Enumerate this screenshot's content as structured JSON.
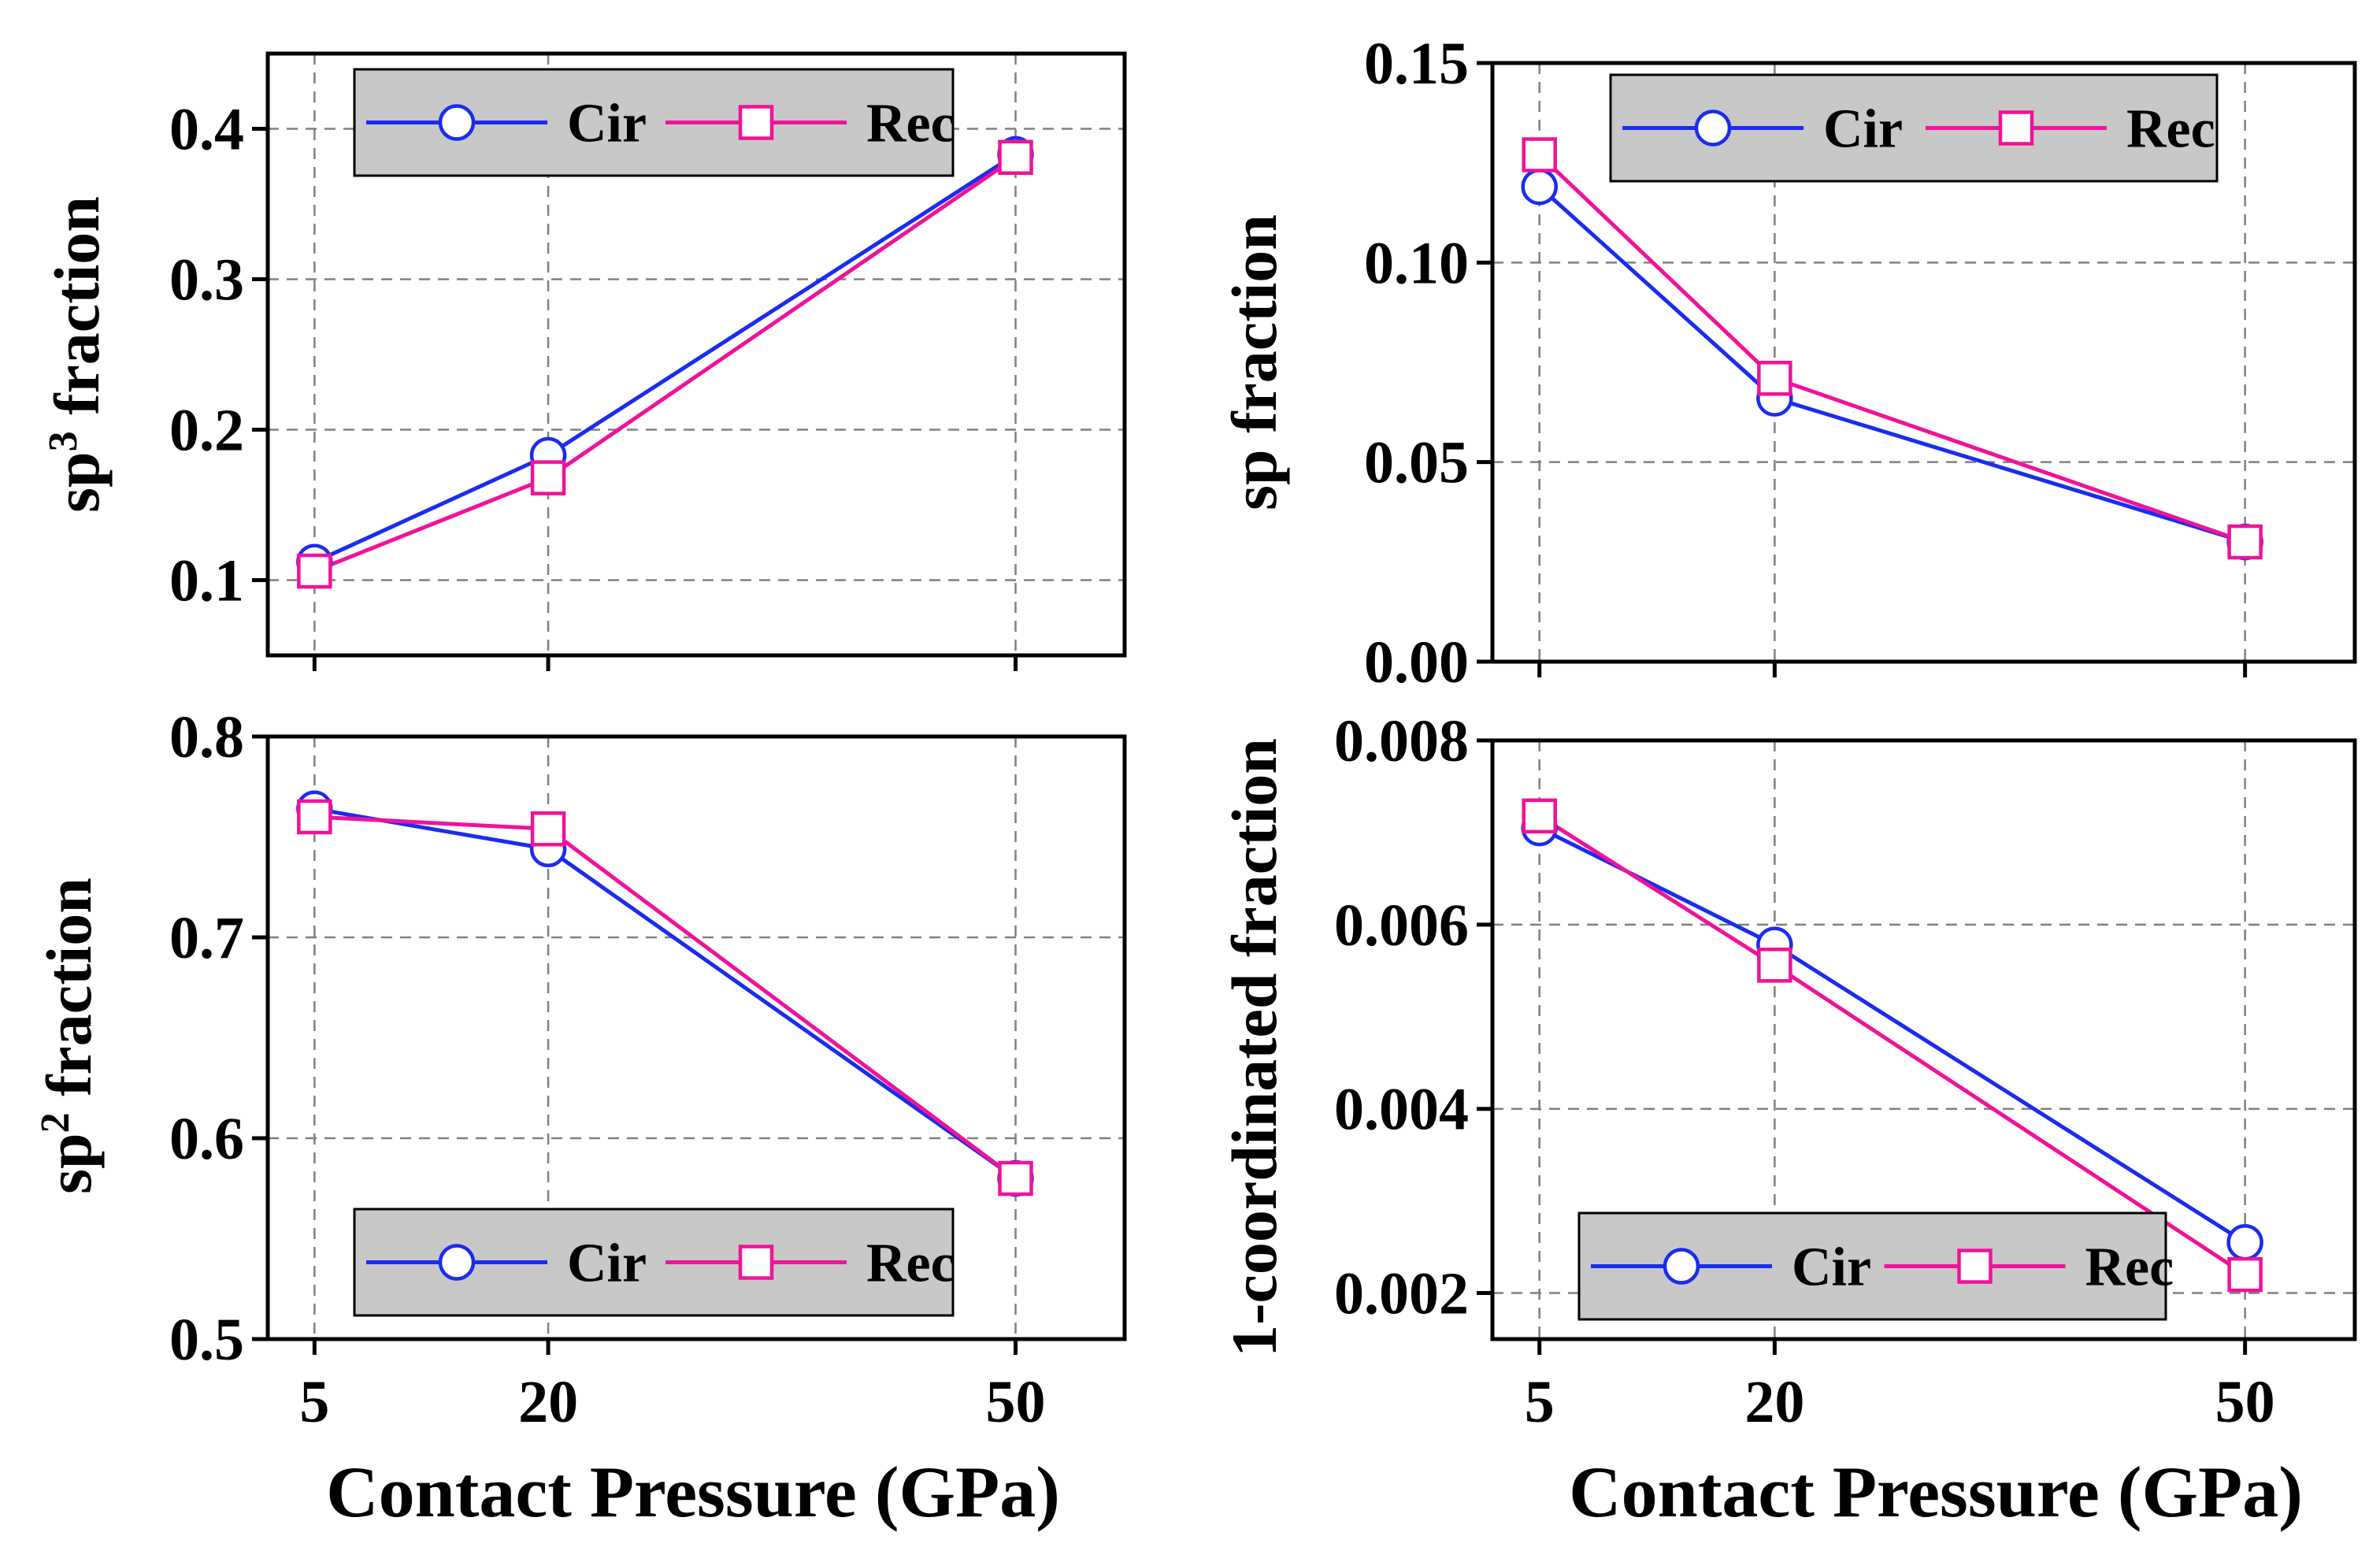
{
  "colors": {
    "cir": "#1a2cf0",
    "rec": "#f0129a",
    "legend_bg": "#c8c8c8",
    "grid": "#808080"
  },
  "shared": {
    "xlabel": "Contact Pressure (GPa)"
  },
  "chart_data": [
    {
      "id": "sp3",
      "type": "line",
      "ylabel_main": "sp",
      "ylabel_sup": "3",
      "ylabel_tail": " fraction",
      "ylabel": "sp3 fraction",
      "x": [
        5,
        20,
        50
      ],
      "xticks": [
        "5",
        "20",
        "50"
      ],
      "xlim": [
        2,
        57
      ],
      "ylim": [
        0.05,
        0.45
      ],
      "yticks": [
        "0.1",
        "0.2",
        "0.3",
        "0.4"
      ],
      "ytick_values": [
        0.1,
        0.2,
        0.3,
        0.4
      ],
      "grid": true,
      "legend": "top",
      "series": [
        {
          "name": "Cir",
          "marker": "circle",
          "values": [
            0.112,
            0.183,
            0.383
          ]
        },
        {
          "name": "Rec",
          "marker": "square",
          "values": [
            0.106,
            0.168,
            0.381
          ]
        }
      ]
    },
    {
      "id": "sp",
      "type": "line",
      "ylabel_main": "sp fraction",
      "ylabel_sup": "",
      "ylabel_tail": "",
      "ylabel": "sp fraction",
      "x": [
        5,
        20,
        50
      ],
      "xticks": [
        "5",
        "20",
        "50"
      ],
      "xlim": [
        2,
        57
      ],
      "ylim": [
        0.0,
        0.15
      ],
      "yticks": [
        "0.00",
        "0.05",
        "0.10",
        "0.15"
      ],
      "ytick_values": [
        0.0,
        0.05,
        0.1,
        0.15
      ],
      "grid": true,
      "legend": "top",
      "series": [
        {
          "name": "Cir",
          "marker": "circle",
          "values": [
            0.119,
            0.066,
            0.03
          ]
        },
        {
          "name": "Rec",
          "marker": "square",
          "values": [
            0.127,
            0.071,
            0.03
          ]
        }
      ]
    },
    {
      "id": "sp2",
      "type": "line",
      "ylabel_main": "sp",
      "ylabel_sup": "2",
      "ylabel_tail": " fraction",
      "ylabel": "sp2 fraction",
      "x": [
        5,
        20,
        50
      ],
      "xticks": [
        "5",
        "20",
        "50"
      ],
      "xlim": [
        2,
        57
      ],
      "ylim": [
        0.5,
        0.8
      ],
      "yticks": [
        "0.5",
        "0.6",
        "0.7",
        "0.8"
      ],
      "ytick_values": [
        0.5,
        0.6,
        0.7,
        0.8
      ],
      "grid": true,
      "legend": "bottom",
      "series": [
        {
          "name": "Cir",
          "marker": "circle",
          "values": [
            0.764,
            0.744,
            0.58
          ]
        },
        {
          "name": "Rec",
          "marker": "square",
          "values": [
            0.76,
            0.754,
            0.58
          ]
        }
      ]
    },
    {
      "id": "c1",
      "type": "line",
      "ylabel_main": "1-coordinated fraction",
      "ylabel_sup": "",
      "ylabel_tail": "",
      "ylabel": "1-coordinated fraction",
      "x": [
        5,
        20,
        50
      ],
      "xticks": [
        "5",
        "20",
        "50"
      ],
      "xlim": [
        2,
        57
      ],
      "ylim": [
        0.0015,
        0.008
      ],
      "yticks": [
        "0.002",
        "0.004",
        "0.006",
        "0.008"
      ],
      "ytick_values": [
        0.002,
        0.004,
        0.006,
        0.008
      ],
      "grid": true,
      "legend": "bottom",
      "series": [
        {
          "name": "Cir",
          "marker": "circle",
          "values": [
            0.00705,
            0.00578,
            0.00255
          ]
        },
        {
          "name": "Rec",
          "marker": "square",
          "values": [
            0.00718,
            0.00556,
            0.0022
          ]
        }
      ]
    }
  ]
}
